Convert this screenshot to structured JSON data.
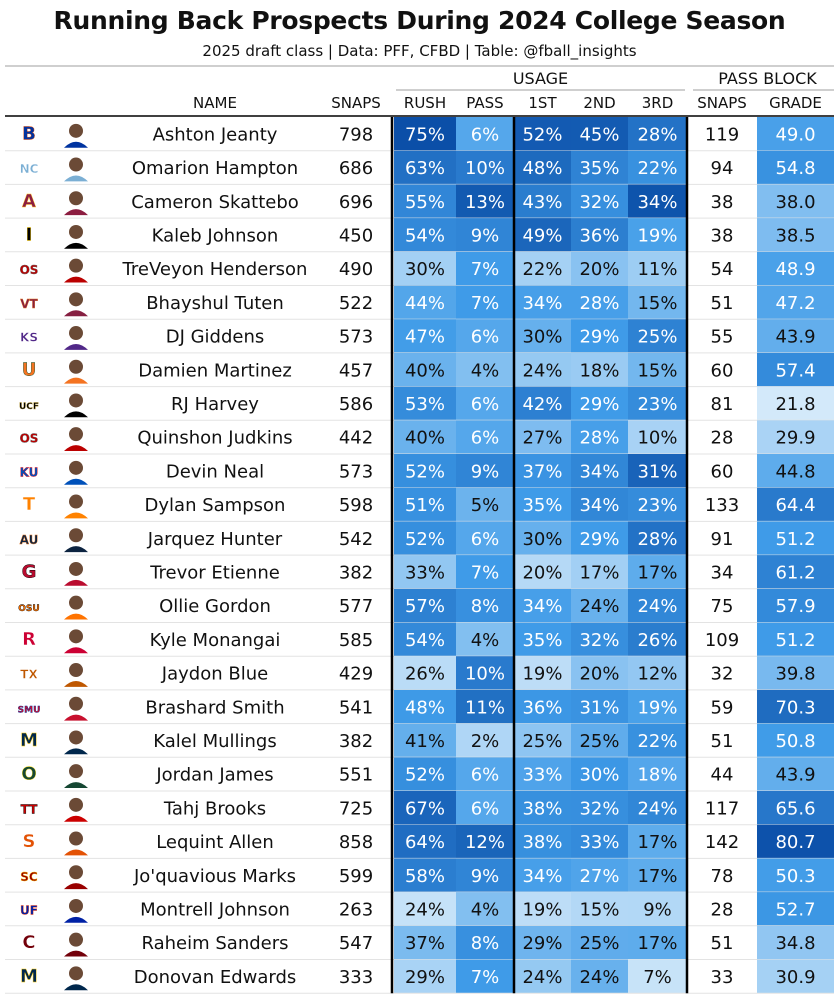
{
  "title": "Running Back Prospects During 2024 College Season",
  "subtitle": "2025 draft class | Data: PFF, CFBD | Table: @fball_insights",
  "chart_data": {
    "type": "table",
    "group_headers": {
      "usage": "USAGE",
      "pass_block": "PASS BLOCK"
    },
    "columns": [
      "NAME",
      "SNAPS",
      "RUSH",
      "PASS",
      "1ST",
      "2ND",
      "3RD",
      "SNAPS",
      "GRADE"
    ],
    "rows": [
      {
        "name": "Ashton Jeanty",
        "snaps": "798",
        "rush": "75%",
        "pass": "6%",
        "first": "52%",
        "second": "45%",
        "third": "28%",
        "pb_snaps": "119",
        "grade": "49.0"
      },
      {
        "name": "Omarion Hampton",
        "snaps": "686",
        "rush": "63%",
        "pass": "10%",
        "first": "48%",
        "second": "35%",
        "third": "22%",
        "pb_snaps": "94",
        "grade": "54.8"
      },
      {
        "name": "Cameron Skattebo",
        "snaps": "696",
        "rush": "55%",
        "pass": "13%",
        "first": "43%",
        "second": "32%",
        "third": "34%",
        "pb_snaps": "38",
        "grade": "38.0"
      },
      {
        "name": "Kaleb Johnson",
        "snaps": "450",
        "rush": "54%",
        "pass": "9%",
        "first": "49%",
        "second": "36%",
        "third": "19%",
        "pb_snaps": "38",
        "grade": "38.5"
      },
      {
        "name": "TreVeyon Henderson",
        "snaps": "490",
        "rush": "30%",
        "pass": "7%",
        "first": "22%",
        "second": "20%",
        "third": "11%",
        "pb_snaps": "54",
        "grade": "48.9"
      },
      {
        "name": "Bhayshul Tuten",
        "snaps": "522",
        "rush": "44%",
        "pass": "7%",
        "first": "34%",
        "second": "28%",
        "third": "15%",
        "pb_snaps": "51",
        "grade": "47.2"
      },
      {
        "name": "DJ Giddens",
        "snaps": "573",
        "rush": "47%",
        "pass": "6%",
        "first": "30%",
        "second": "29%",
        "third": "25%",
        "pb_snaps": "55",
        "grade": "43.9"
      },
      {
        "name": "Damien Martinez",
        "snaps": "457",
        "rush": "40%",
        "pass": "4%",
        "first": "24%",
        "second": "18%",
        "third": "15%",
        "pb_snaps": "60",
        "grade": "57.4"
      },
      {
        "name": "RJ Harvey",
        "snaps": "586",
        "rush": "53%",
        "pass": "6%",
        "first": "42%",
        "second": "29%",
        "third": "23%",
        "pb_snaps": "81",
        "grade": "21.8"
      },
      {
        "name": "Quinshon Judkins",
        "snaps": "442",
        "rush": "40%",
        "pass": "6%",
        "first": "27%",
        "second": "28%",
        "third": "10%",
        "pb_snaps": "28",
        "grade": "29.9"
      },
      {
        "name": "Devin Neal",
        "snaps": "573",
        "rush": "52%",
        "pass": "9%",
        "first": "37%",
        "second": "34%",
        "third": "31%",
        "pb_snaps": "60",
        "grade": "44.8"
      },
      {
        "name": "Dylan Sampson",
        "snaps": "598",
        "rush": "51%",
        "pass": "5%",
        "first": "35%",
        "second": "34%",
        "third": "23%",
        "pb_snaps": "133",
        "grade": "64.4"
      },
      {
        "name": "Jarquez Hunter",
        "snaps": "542",
        "rush": "52%",
        "pass": "6%",
        "first": "30%",
        "second": "29%",
        "third": "28%",
        "pb_snaps": "91",
        "grade": "51.2"
      },
      {
        "name": "Trevor Etienne",
        "snaps": "382",
        "rush": "33%",
        "pass": "7%",
        "first": "20%",
        "second": "17%",
        "third": "17%",
        "pb_snaps": "34",
        "grade": "61.2"
      },
      {
        "name": "Ollie Gordon",
        "snaps": "577",
        "rush": "57%",
        "pass": "8%",
        "first": "34%",
        "second": "24%",
        "third": "24%",
        "pb_snaps": "75",
        "grade": "57.9"
      },
      {
        "name": "Kyle Monangai",
        "snaps": "585",
        "rush": "54%",
        "pass": "4%",
        "first": "35%",
        "second": "32%",
        "third": "26%",
        "pb_snaps": "109",
        "grade": "51.2"
      },
      {
        "name": "Jaydon Blue",
        "snaps": "429",
        "rush": "26%",
        "pass": "10%",
        "first": "19%",
        "second": "20%",
        "third": "12%",
        "pb_snaps": "32",
        "grade": "39.8"
      },
      {
        "name": "Brashard Smith",
        "snaps": "541",
        "rush": "48%",
        "pass": "11%",
        "first": "36%",
        "second": "31%",
        "third": "19%",
        "pb_snaps": "59",
        "grade": "70.3"
      },
      {
        "name": "Kalel Mullings",
        "snaps": "382",
        "rush": "41%",
        "pass": "2%",
        "first": "25%",
        "second": "25%",
        "third": "22%",
        "pb_snaps": "51",
        "grade": "50.8"
      },
      {
        "name": "Jordan James",
        "snaps": "551",
        "rush": "52%",
        "pass": "6%",
        "first": "33%",
        "second": "30%",
        "third": "18%",
        "pb_snaps": "44",
        "grade": "43.9"
      },
      {
        "name": "Tahj Brooks",
        "snaps": "725",
        "rush": "67%",
        "pass": "6%",
        "first": "38%",
        "second": "32%",
        "third": "24%",
        "pb_snaps": "117",
        "grade": "65.6"
      },
      {
        "name": "Lequint Allen",
        "snaps": "858",
        "rush": "64%",
        "pass": "12%",
        "first": "38%",
        "second": "33%",
        "third": "17%",
        "pb_snaps": "142",
        "grade": "80.7"
      },
      {
        "name": "Jo'quavious Marks",
        "snaps": "599",
        "rush": "58%",
        "pass": "9%",
        "first": "34%",
        "second": "27%",
        "third": "17%",
        "pb_snaps": "78",
        "grade": "50.3"
      },
      {
        "name": "Montrell Johnson",
        "snaps": "263",
        "rush": "24%",
        "pass": "4%",
        "first": "19%",
        "second": "15%",
        "third": "9%",
        "pb_snaps": "28",
        "grade": "52.7"
      },
      {
        "name": "Raheim Sanders",
        "snaps": "547",
        "rush": "37%",
        "pass": "8%",
        "first": "29%",
        "second": "25%",
        "third": "17%",
        "pb_snaps": "51",
        "grade": "34.8"
      },
      {
        "name": "Donovan Edwards",
        "snaps": "333",
        "rush": "29%",
        "pass": "7%",
        "first": "24%",
        "second": "24%",
        "third": "7%",
        "pb_snaps": "33",
        "grade": "30.9"
      }
    ],
    "logos": [
      {
        "text": "B",
        "color": "#0033a0",
        "accent": "#d64309"
      },
      {
        "text": "NC",
        "color": "#7bafd4",
        "accent": "#ffffff"
      },
      {
        "text": "A",
        "color": "#8c1d40",
        "accent": "#ffc627"
      },
      {
        "text": "I",
        "color": "#000000",
        "accent": "#ffcd00"
      },
      {
        "text": "OS",
        "color": "#bb0000",
        "accent": "#666666"
      },
      {
        "text": "VT",
        "color": "#861f41",
        "accent": "#e5751f"
      },
      {
        "text": "KS",
        "color": "#512888",
        "accent": "#ffffff"
      },
      {
        "text": "U",
        "color": "#f47321",
        "accent": "#005030"
      },
      {
        "text": "UCF",
        "color": "#000000",
        "accent": "#ba9b37"
      },
      {
        "text": "OS",
        "color": "#bb0000",
        "accent": "#666666"
      },
      {
        "text": "KU",
        "color": "#0051ba",
        "accent": "#e8000d"
      },
      {
        "text": "T",
        "color": "#ff8200",
        "accent": "#ffffff"
      },
      {
        "text": "AU",
        "color": "#0c2340",
        "accent": "#e87722"
      },
      {
        "text": "G",
        "color": "#ba0c2f",
        "accent": "#000000"
      },
      {
        "text": "OSU",
        "color": "#ff7300",
        "accent": "#000000"
      },
      {
        "text": "R",
        "color": "#cc0033",
        "accent": "#ffffff"
      },
      {
        "text": "TX",
        "color": "#bf5700",
        "accent": "#ffffff"
      },
      {
        "text": "SMU",
        "color": "#c8102e",
        "accent": "#0033a0"
      },
      {
        "text": "M",
        "color": "#00274c",
        "accent": "#ffcb05"
      },
      {
        "text": "O",
        "color": "#154733",
        "accent": "#fee123"
      },
      {
        "text": "TT",
        "color": "#cc0000",
        "accent": "#000000"
      },
      {
        "text": "S",
        "color": "#e35205",
        "accent": "#ffffff"
      },
      {
        "text": "SC",
        "color": "#990000",
        "accent": "#ffcc00"
      },
      {
        "text": "UF",
        "color": "#0021a5",
        "accent": "#fa4616"
      },
      {
        "text": "C",
        "color": "#73000a",
        "accent": "#ffffff"
      },
      {
        "text": "M",
        "color": "#00274c",
        "accent": "#ffcb05"
      }
    ],
    "colors": {
      "scale_light": "#dceefb",
      "scale_mid": "#3f9be8",
      "scale_dark": "#0b4fa8",
      "header_rule": "#cfcfcf",
      "thick_border": "#000000"
    }
  }
}
